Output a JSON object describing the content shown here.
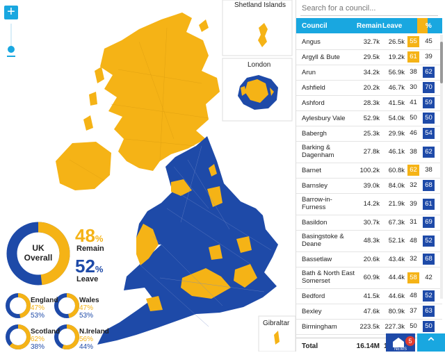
{
  "insets": {
    "shetland": "Shetland Islands",
    "london": "London",
    "gibraltar": "Gibraltar"
  },
  "overall": {
    "title_line1": "UK",
    "title_line2": "Overall",
    "remain_pct": "48",
    "remain_label": "Remain",
    "leave_pct": "52",
    "leave_label": "Leave",
    "pct_sign": "%",
    "remain_value": 48
  },
  "regions": [
    {
      "name": "England",
      "remain": "47%",
      "leave": "53%",
      "remain_value": 47
    },
    {
      "name": "Wales",
      "remain": "47%",
      "leave": "53%",
      "remain_value": 47
    },
    {
      "name": "Scotland",
      "remain": "62%",
      "leave": "38%",
      "remain_value": 62
    },
    {
      "name": "N.Ireland",
      "remain": "56%",
      "leave": "44%",
      "remain_value": 56
    }
  ],
  "search": {
    "placeholder": "Search for a council..."
  },
  "table": {
    "headers": {
      "council": "Council",
      "remain": "Remain",
      "leave": "Leave",
      "pct": "%"
    },
    "rows": [
      {
        "name": "Angus",
        "remain": "32.7k",
        "leave": "26.5k",
        "rp": "55",
        "lp": "45",
        "win": "remain"
      },
      {
        "name": "Argyll & Bute",
        "remain": "29.5k",
        "leave": "19.2k",
        "rp": "61",
        "lp": "39",
        "win": "remain"
      },
      {
        "name": "Arun",
        "remain": "34.2k",
        "leave": "56.9k",
        "rp": "38",
        "lp": "62",
        "win": "leave"
      },
      {
        "name": "Ashfield",
        "remain": "20.2k",
        "leave": "46.7k",
        "rp": "30",
        "lp": "70",
        "win": "leave"
      },
      {
        "name": "Ashford",
        "remain": "28.3k",
        "leave": "41.5k",
        "rp": "41",
        "lp": "59",
        "win": "leave"
      },
      {
        "name": "Aylesbury Vale",
        "remain": "52.9k",
        "leave": "54.0k",
        "rp": "50",
        "lp": "50",
        "win": "leave"
      },
      {
        "name": "Babergh",
        "remain": "25.3k",
        "leave": "29.9k",
        "rp": "46",
        "lp": "54",
        "win": "leave"
      },
      {
        "name": "Barking & Dagenham",
        "remain": "27.8k",
        "leave": "46.1k",
        "rp": "38",
        "lp": "62",
        "win": "leave"
      },
      {
        "name": "Barnet",
        "remain": "100.2k",
        "leave": "60.8k",
        "rp": "62",
        "lp": "38",
        "win": "remain"
      },
      {
        "name": "Barnsley",
        "remain": "39.0k",
        "leave": "84.0k",
        "rp": "32",
        "lp": "68",
        "win": "leave"
      },
      {
        "name": "Barrow-in-Furness",
        "remain": "14.2k",
        "leave": "21.9k",
        "rp": "39",
        "lp": "61",
        "win": "leave"
      },
      {
        "name": "Basildon",
        "remain": "30.7k",
        "leave": "67.3k",
        "rp": "31",
        "lp": "69",
        "win": "leave"
      },
      {
        "name": "Basingstoke & Deane",
        "remain": "48.3k",
        "leave": "52.1k",
        "rp": "48",
        "lp": "52",
        "win": "leave"
      },
      {
        "name": "Bassetlaw",
        "remain": "20.6k",
        "leave": "43.4k",
        "rp": "32",
        "lp": "68",
        "win": "leave"
      },
      {
        "name": "Bath & North East Somerset",
        "remain": "60.9k",
        "leave": "44.4k",
        "rp": "58",
        "lp": "42",
        "win": "remain"
      },
      {
        "name": "Bedford",
        "remain": "41.5k",
        "leave": "44.6k",
        "rp": "48",
        "lp": "52",
        "win": "leave"
      },
      {
        "name": "Bexley",
        "remain": "47.6k",
        "leave": "80.9k",
        "rp": "37",
        "lp": "63",
        "win": "leave"
      },
      {
        "name": "Birmingham",
        "remain": "223.5k",
        "leave": "227.3k",
        "rp": "50",
        "lp": "50",
        "win": "leave"
      },
      {
        "name": "Blaby",
        "remain": "22.9k",
        "leave": "33.6k",
        "rp": "41",
        "lp": "59",
        "win": "leave"
      }
    ],
    "total_label": "Total",
    "total_remain": "16.14M",
    "total_leave": "1"
  },
  "news": {
    "badge": "5",
    "label": "NEWS"
  },
  "colors": {
    "remain": "#f5b316",
    "leave": "#1e4aa8",
    "accent": "#19a7e0"
  }
}
